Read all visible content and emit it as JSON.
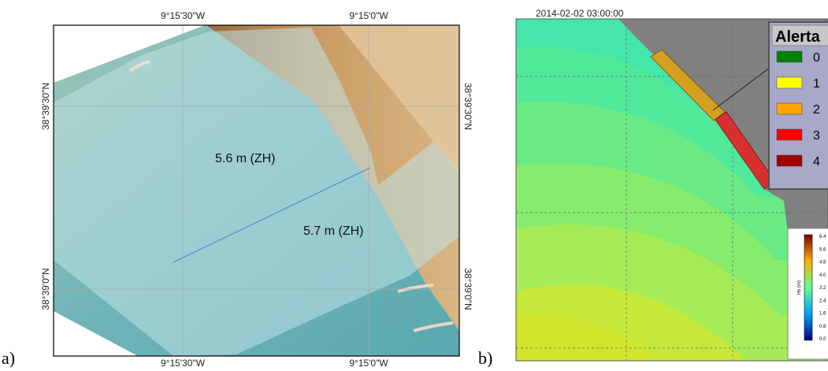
{
  "panel_a": {
    "label": "a)",
    "lon_labels": [
      "9°15'30\"W",
      "9°15'0\"W"
    ],
    "lat_labels": [
      "38°39'30\"N",
      "38°39'0\"N"
    ],
    "zones": [
      {
        "label": "5.6 m (ZH)"
      },
      {
        "label": "5.7 m (ZH)"
      }
    ]
  },
  "panel_b": {
    "label": "b)",
    "timestamp": "2014-02-02 03:00:00",
    "legend": {
      "title": "Alerta",
      "items": [
        {
          "label": "0",
          "color": "#008000"
        },
        {
          "label": "1",
          "color": "#ffff00"
        },
        {
          "label": "2",
          "color": "#ffa500"
        },
        {
          "label": "3",
          "color": "#ff0000"
        },
        {
          "label": "4",
          "color": "#a00000"
        }
      ]
    },
    "colorbar": {
      "title": "Hs (m)",
      "ticks": [
        "6.4",
        "5.6",
        "4.8",
        "4.0",
        "3.2",
        "2.4",
        "1.6",
        "0.8",
        "0.0"
      ]
    }
  }
}
